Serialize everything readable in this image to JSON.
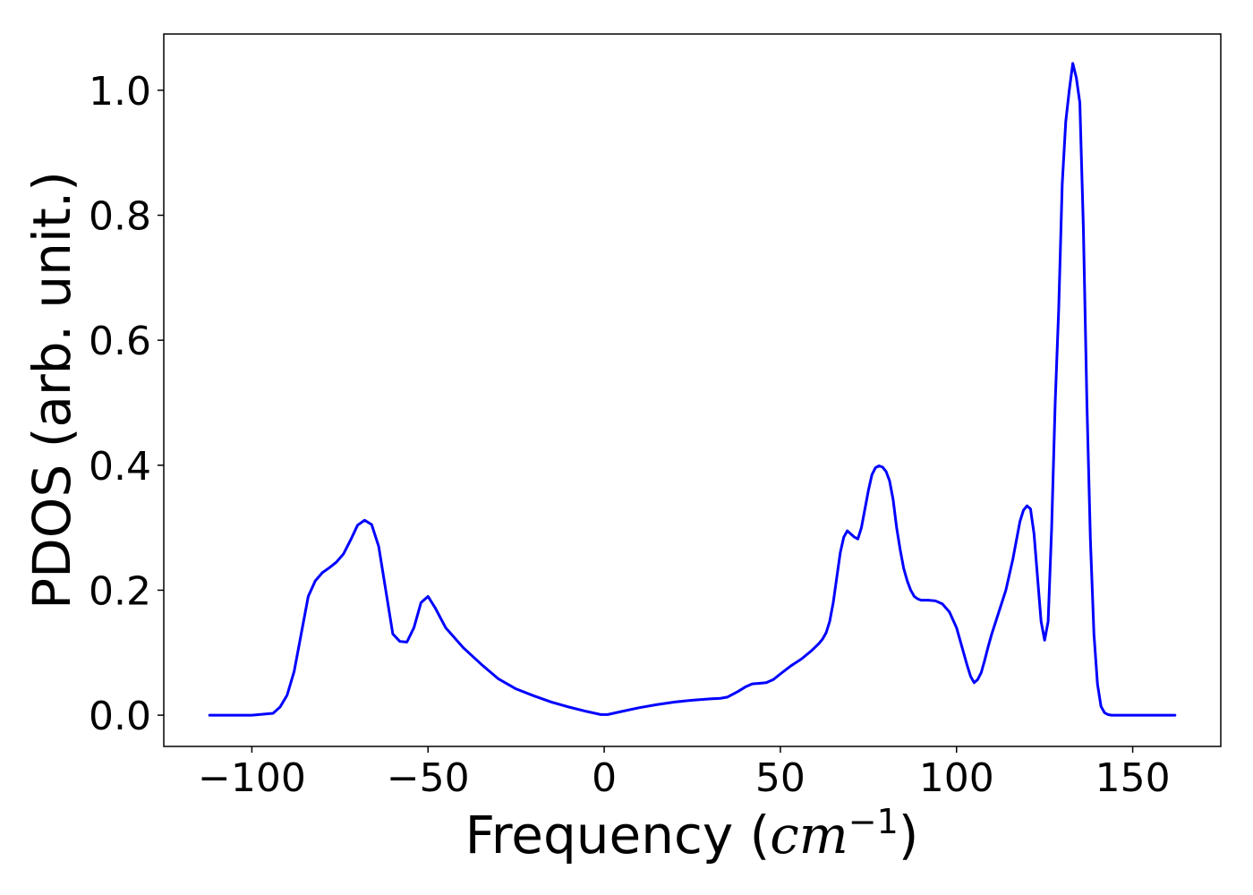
{
  "chart_data": {
    "type": "line",
    "xlabel_main": "Frequency (",
    "xlabel_unit": "cm",
    "xlabel_exp": "−1",
    "xlabel_close": ")",
    "ylabel": "PDOS (arb. unit.)",
    "xlim": [
      -125,
      175
    ],
    "ylim": [
      -0.05,
      1.09
    ],
    "xticks": [
      -100,
      -50,
      0,
      50,
      100,
      150
    ],
    "xtick_labels": [
      "−100",
      "−50",
      "0",
      "50",
      "100",
      "150"
    ],
    "yticks": [
      0.0,
      0.2,
      0.4,
      0.6,
      0.8,
      1.0
    ],
    "ytick_labels": [
      "0.0",
      "0.2",
      "0.4",
      "0.6",
      "0.8",
      "1.0"
    ],
    "grid": false,
    "series": [
      {
        "color": "#0000ff",
        "x": [
          -112,
          -100,
          -94,
          -92,
          -90,
          -88,
          -86,
          -84,
          -82,
          -80,
          -78,
          -76,
          -74,
          -72,
          -70,
          -68,
          -66,
          -64,
          -62,
          -60,
          -58,
          -56,
          -54,
          -52,
          -50,
          -48,
          -45,
          -40,
          -35,
          -30,
          -25,
          -20,
          -15,
          -10,
          -5,
          -1,
          1,
          5,
          10,
          15,
          20,
          25,
          30,
          33,
          35,
          38,
          40,
          42,
          44,
          46,
          48,
          50,
          53,
          56,
          59,
          61,
          62,
          63,
          64,
          65,
          66,
          67,
          68,
          69,
          70,
          71,
          72,
          73,
          74,
          75,
          76,
          77,
          78,
          79,
          80,
          81,
          82,
          83,
          84,
          85,
          86,
          87,
          88,
          89,
          90,
          92,
          94,
          96,
          98,
          100,
          102,
          103,
          104,
          105,
          106,
          107,
          108,
          109,
          110,
          112,
          114,
          116,
          117,
          118,
          119,
          120,
          121,
          122,
          123,
          124,
          125,
          126,
          127,
          128,
          129,
          130,
          131,
          132,
          133,
          134,
          135,
          136,
          137,
          138,
          139,
          140,
          141,
          142,
          143,
          144,
          145,
          148,
          162
        ],
        "y": [
          0.0,
          0.0,
          0.003,
          0.013,
          0.032,
          0.07,
          0.13,
          0.19,
          0.215,
          0.228,
          0.236,
          0.245,
          0.258,
          0.28,
          0.304,
          0.312,
          0.305,
          0.27,
          0.2,
          0.13,
          0.118,
          0.117,
          0.14,
          0.18,
          0.19,
          0.172,
          0.14,
          0.108,
          0.082,
          0.058,
          0.042,
          0.031,
          0.021,
          0.013,
          0.006,
          0.001,
          0.001,
          0.006,
          0.012,
          0.017,
          0.021,
          0.024,
          0.026,
          0.027,
          0.029,
          0.038,
          0.045,
          0.05,
          0.051,
          0.052,
          0.057,
          0.066,
          0.079,
          0.09,
          0.104,
          0.115,
          0.122,
          0.132,
          0.15,
          0.18,
          0.22,
          0.26,
          0.285,
          0.295,
          0.29,
          0.285,
          0.282,
          0.3,
          0.33,
          0.36,
          0.385,
          0.396,
          0.399,
          0.397,
          0.39,
          0.375,
          0.345,
          0.3,
          0.265,
          0.235,
          0.215,
          0.2,
          0.19,
          0.186,
          0.184,
          0.184,
          0.183,
          0.178,
          0.165,
          0.14,
          0.1,
          0.08,
          0.062,
          0.052,
          0.057,
          0.068,
          0.088,
          0.11,
          0.13,
          0.165,
          0.2,
          0.25,
          0.28,
          0.31,
          0.328,
          0.335,
          0.33,
          0.29,
          0.22,
          0.15,
          0.12,
          0.15,
          0.3,
          0.5,
          0.65,
          0.85,
          0.95,
          1.0,
          1.043,
          1.02,
          0.98,
          0.78,
          0.5,
          0.28,
          0.13,
          0.05,
          0.014,
          0.004,
          0.001,
          0.0,
          0.0,
          0.0,
          0.0
        ]
      }
    ]
  }
}
